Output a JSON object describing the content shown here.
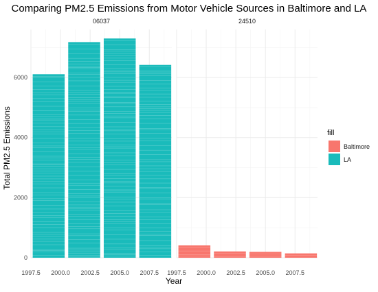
{
  "chart_data": {
    "type": "bar",
    "title": "Comparing PM2.5 Emissions from Motor Vehicle Sources in Baltimore and LA",
    "xlabel": "Year",
    "ylabel": "Total PM2.5 Emissions",
    "xlim": [
      1997.5,
      2009.4
    ],
    "ylim": [
      0,
      7600
    ],
    "x_ticks": [
      "1997.5",
      "2000.0",
      "2002.5",
      "2005.0",
      "2007.5"
    ],
    "x_tick_values": [
      1997.5,
      2000.0,
      2002.5,
      2005.0,
      2007.5
    ],
    "y_ticks": [
      "0",
      "2000",
      "4000",
      "6000"
    ],
    "y_tick_values": [
      0,
      2000,
      4000,
      6000
    ],
    "grid": true,
    "legend": {
      "title": "fill",
      "placement": "right",
      "entries": [
        {
          "label": "Baltimore",
          "color": "#F8766D"
        },
        {
          "label": "LA",
          "color": "#1ABBBB"
        }
      ]
    },
    "facets": [
      {
        "strip": "06037",
        "series": "LA",
        "color": "#1ABBBB",
        "x": [
          1999,
          2002,
          2005,
          2008
        ],
        "values": [
          6110,
          7180,
          7300,
          6420
        ]
      },
      {
        "strip": "24510",
        "series": "Baltimore",
        "color": "#F8766D",
        "x": [
          1999,
          2002,
          2005,
          2008
        ],
        "values": [
          410,
          210,
          195,
          145
        ]
      }
    ]
  }
}
